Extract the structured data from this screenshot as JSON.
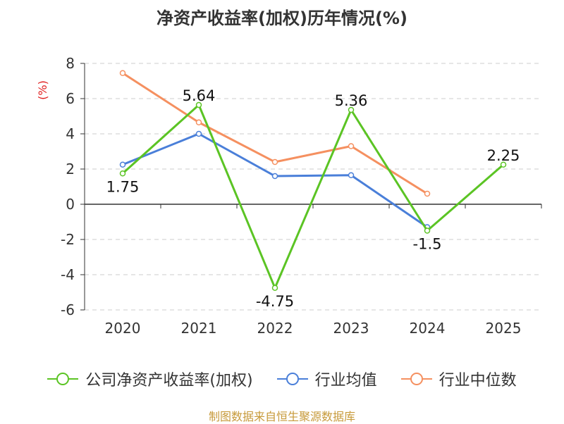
{
  "title": "净资产收益率(加权)历年情况(%)",
  "source": "制图数据来自恒生聚源数据库",
  "chart_data": {
    "type": "line",
    "title": "净资产收益率(加权)历年情况(%)",
    "ylabel": "(%)",
    "xlabel": "",
    "categories": [
      "2020",
      "2021",
      "2022",
      "2023",
      "2024",
      "2025"
    ],
    "ylim": [
      -6,
      8
    ],
    "yticks": [
      8,
      6,
      4,
      2,
      0,
      -2,
      -4,
      -6
    ],
    "ytick_labels": [
      "8",
      "6",
      "4",
      "2",
      "0",
      "-2",
      "-4",
      "-6"
    ],
    "grid": true,
    "legend_position": "bottom",
    "series": [
      {
        "name": "公司净资产收益率(加权)",
        "color": "#5bc424",
        "values": [
          1.75,
          5.64,
          -4.75,
          5.36,
          -1.5,
          2.25
        ],
        "labels": [
          "1.75",
          "5.64",
          "-4.75",
          "5.36",
          "-1.5",
          "2.25"
        ]
      },
      {
        "name": "行业均值",
        "color": "#4a7fd9",
        "values": [
          2.25,
          4.0,
          1.6,
          1.65,
          -1.3,
          null
        ]
      },
      {
        "name": "行业中位数",
        "color": "#f59060",
        "values": [
          7.45,
          4.65,
          2.4,
          3.3,
          0.6,
          null
        ]
      }
    ]
  }
}
